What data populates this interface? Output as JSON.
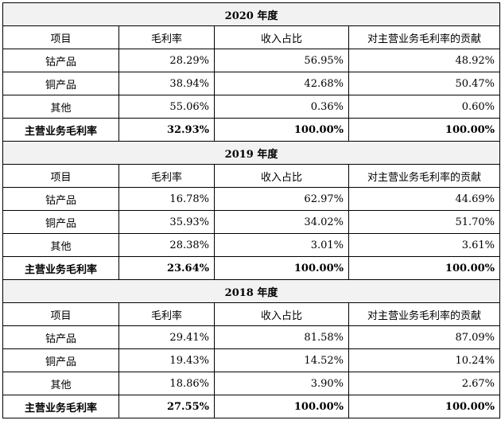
{
  "headers": [
    "项目",
    "毛利率",
    "收入占比",
    "对主营业务毛利率的贡献"
  ],
  "years": [
    {
      "title": "2020 年度",
      "rows": [
        [
          "钴产品",
          "28.29%",
          "56.95%",
          "48.92%"
        ],
        [
          "铜产品",
          "38.94%",
          "42.68%",
          "50.47%"
        ],
        [
          "其他",
          "55.06%",
          "0.36%",
          "0.60%"
        ]
      ],
      "total": [
        "主营业务毛利率",
        "32.93%",
        "100.00%",
        "100.00%"
      ]
    },
    {
      "title": "2019 年度",
      "rows": [
        [
          "钴产品",
          "16.78%",
          "62.97%",
          "44.69%"
        ],
        [
          "铜产品",
          "35.93%",
          "34.02%",
          "51.70%"
        ],
        [
          "其他",
          "28.38%",
          "3.01%",
          "3.61%"
        ]
      ],
      "total": [
        "主营业务毛利率",
        "23.64%",
        "100.00%",
        "100.00%"
      ]
    },
    {
      "title": "2018 年度",
      "rows": [
        [
          "钴产品",
          "29.41%",
          "81.58%",
          "87.09%"
        ],
        [
          "铜产品",
          "19.43%",
          "14.52%",
          "10.24%"
        ],
        [
          "其他",
          "18.86%",
          "3.90%",
          "2.67%"
        ]
      ],
      "total": [
        "主营业务毛利率",
        "27.55%",
        "100.00%",
        "100.00%"
      ]
    }
  ]
}
